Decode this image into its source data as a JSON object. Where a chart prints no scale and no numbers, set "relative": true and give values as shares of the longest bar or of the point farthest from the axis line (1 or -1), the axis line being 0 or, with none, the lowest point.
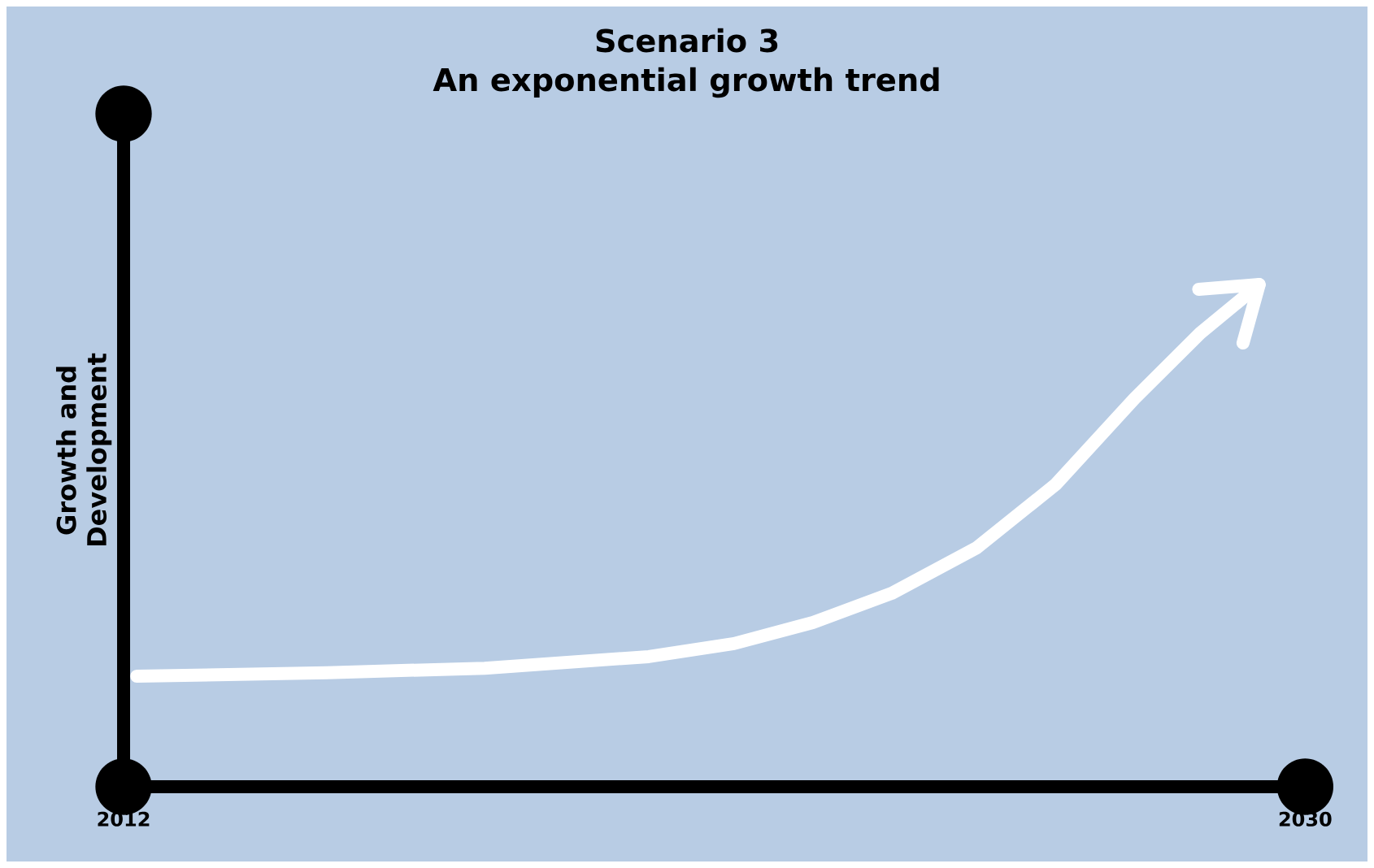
{
  "chart_data": {
    "type": "line",
    "title": "Scenario 3",
    "subtitle": "An exponential growth trend",
    "ylabel": "Growth and Development",
    "relative": true,
    "xlim": [
      2012,
      2030
    ],
    "xticks": [
      {
        "value": 2012,
        "label": "2012"
      },
      {
        "value": 2030,
        "label": "2030"
      }
    ],
    "series": [
      {
        "color": "#ffffff",
        "x": [
          2012.2,
          2015.1,
          2017.5,
          2020.0,
          2021.3,
          2022.5,
          2023.7,
          2025.0,
          2026.2,
          2027.4,
          2028.4,
          2029.3
        ],
        "values": [
          0.22,
          0.227,
          0.236,
          0.259,
          0.285,
          0.327,
          0.385,
          0.476,
          0.602,
          0.773,
          0.903,
          1.0
        ]
      }
    ]
  }
}
